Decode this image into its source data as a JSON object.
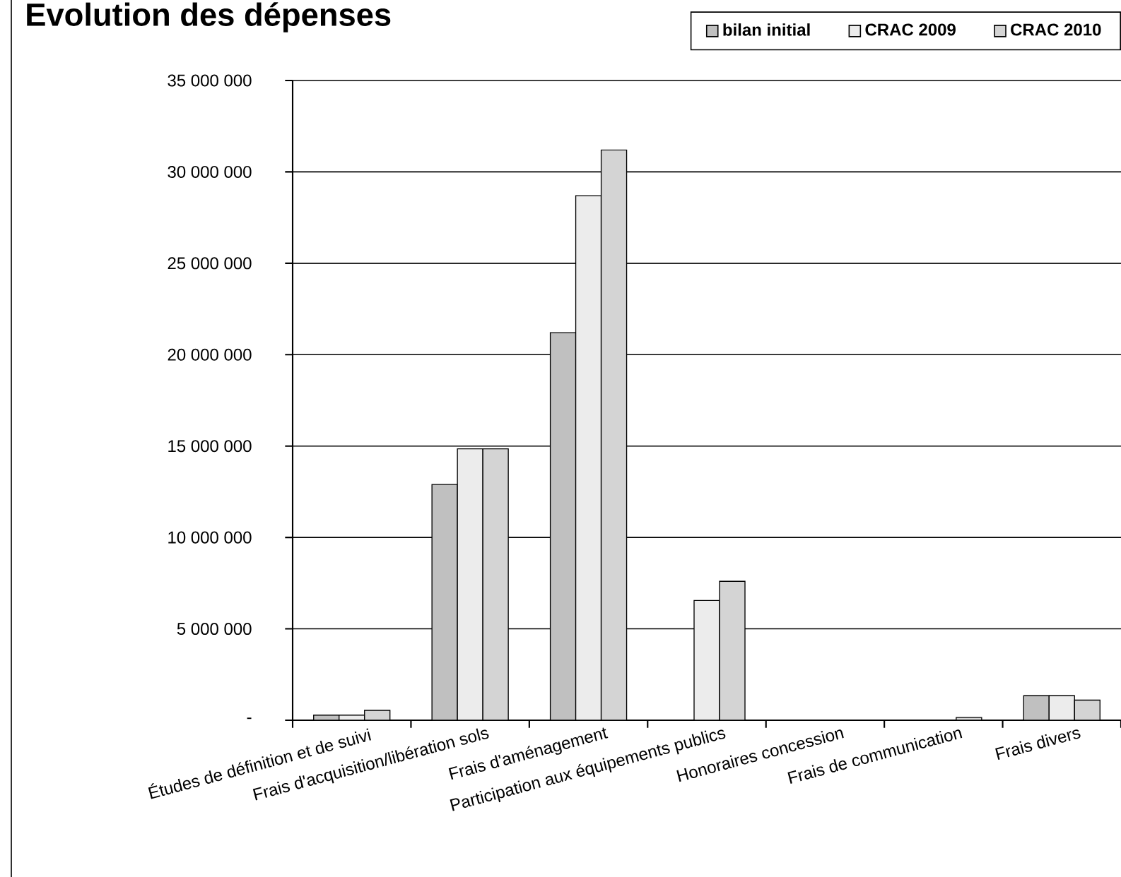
{
  "chart_data": {
    "type": "bar",
    "title": "Evolution des dépenses",
    "categories": [
      "Études de définition et de suivi",
      "Frais d'acquisition/libération sols",
      "Frais d'aménagement",
      "Participation aux équipements publics",
      "Honoraires concession",
      "Frais de communication",
      "Frais divers"
    ],
    "series": [
      {
        "name": "bilan initial",
        "color": "#c0c0c0",
        "values": [
          280000,
          12900000,
          21200000,
          0,
          0,
          0,
          1340000
        ]
      },
      {
        "name": "CRAC 2009",
        "color": "#ececec",
        "values": [
          280000,
          14850000,
          28700000,
          6550000,
          0,
          0,
          1340000
        ]
      },
      {
        "name": "CRAC 2010",
        "color": "#d4d4d4",
        "values": [
          540000,
          14850000,
          31200000,
          7600000,
          0,
          150000,
          1100000
        ]
      }
    ],
    "ylim": [
      0,
      35000000
    ],
    "yticks": [
      {
        "value": 0,
        "label": "-"
      },
      {
        "value": 5000000,
        "label": "5 000 000"
      },
      {
        "value": 10000000,
        "label": "10 000 000"
      },
      {
        "value": 15000000,
        "label": "15 000 000"
      },
      {
        "value": 20000000,
        "label": "20 000 000"
      },
      {
        "value": 25000000,
        "label": "25 000 000"
      },
      {
        "value": 30000000,
        "label": "30 000 000"
      },
      {
        "value": 35000000,
        "label": "35 000 000"
      }
    ],
    "grid": "y",
    "legend": "top right"
  }
}
